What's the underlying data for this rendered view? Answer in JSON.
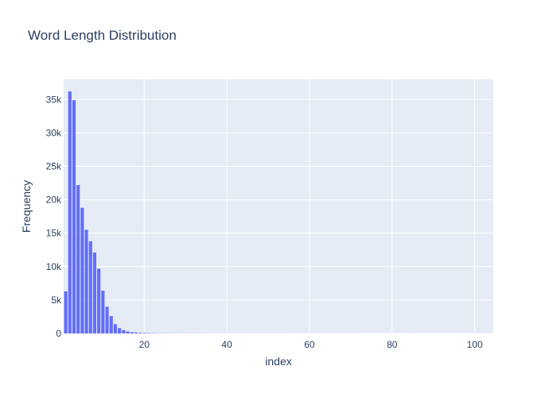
{
  "chart_data": {
    "type": "bar",
    "title": "Word Length Distribution",
    "xlabel": "index",
    "ylabel": "Frequency",
    "xlim": [
      0.5,
      104.5
    ],
    "ylim": [
      0,
      38000
    ],
    "x_ticks": [
      20,
      40,
      60,
      80,
      100
    ],
    "x_tick_labels": [
      "20",
      "40",
      "60",
      "80",
      "100"
    ],
    "y_ticks": [
      0,
      5000,
      10000,
      15000,
      20000,
      25000,
      30000,
      35000
    ],
    "y_tick_labels": [
      "0",
      "5k",
      "10k",
      "15k",
      "20k",
      "25k",
      "30k",
      "35k"
    ],
    "grid": true,
    "legend": "none",
    "colors": {
      "bar": "#636efa",
      "plot_bg": "#e5ecf6",
      "grid": "#ffffff",
      "text": "#2a3f5f"
    },
    "series": [
      {
        "x": [
          1,
          2,
          3,
          4,
          5,
          6,
          7,
          8,
          9,
          10,
          11,
          12,
          13,
          14,
          15,
          16,
          17,
          18,
          19,
          20,
          21,
          22,
          23,
          24,
          25,
          26,
          27,
          28,
          29,
          30,
          31,
          32,
          33,
          34,
          35,
          36,
          37,
          38,
          39,
          40,
          41,
          42,
          43,
          44,
          45,
          46,
          47,
          48,
          49,
          50,
          51,
          52,
          53,
          54,
          55,
          56,
          57,
          58,
          59,
          60,
          61,
          62,
          63,
          64,
          65,
          66,
          67,
          68,
          69,
          70,
          71,
          72,
          73,
          74,
          75,
          76,
          77,
          78,
          79,
          80,
          81,
          82,
          83,
          84,
          85,
          86,
          87,
          88,
          89,
          90,
          91,
          92,
          93,
          94,
          95,
          96,
          97,
          98,
          99,
          100,
          101,
          102,
          103,
          104
        ],
        "values": [
          6300,
          36200,
          34900,
          22200,
          18800,
          15500,
          13800,
          12100,
          9700,
          6400,
          4000,
          2600,
          1400,
          800,
          500,
          300,
          200,
          150,
          100,
          80,
          60,
          50,
          40,
          35,
          30,
          25,
          20,
          18,
          16,
          15,
          14,
          13,
          12,
          11,
          10,
          10,
          9,
          9,
          8,
          8,
          8,
          7,
          7,
          7,
          6,
          6,
          6,
          6,
          5,
          5,
          5,
          5,
          5,
          5,
          4,
          4,
          4,
          4,
          4,
          4,
          4,
          3,
          3,
          3,
          3,
          3,
          3,
          3,
          3,
          3,
          3,
          3,
          2,
          2,
          2,
          2,
          2,
          2,
          2,
          2,
          2,
          2,
          2,
          2,
          2,
          2,
          2,
          2,
          2,
          2,
          2,
          2,
          2,
          2,
          2,
          2,
          2,
          2,
          2,
          2,
          2,
          2,
          2,
          2
        ]
      }
    ]
  }
}
